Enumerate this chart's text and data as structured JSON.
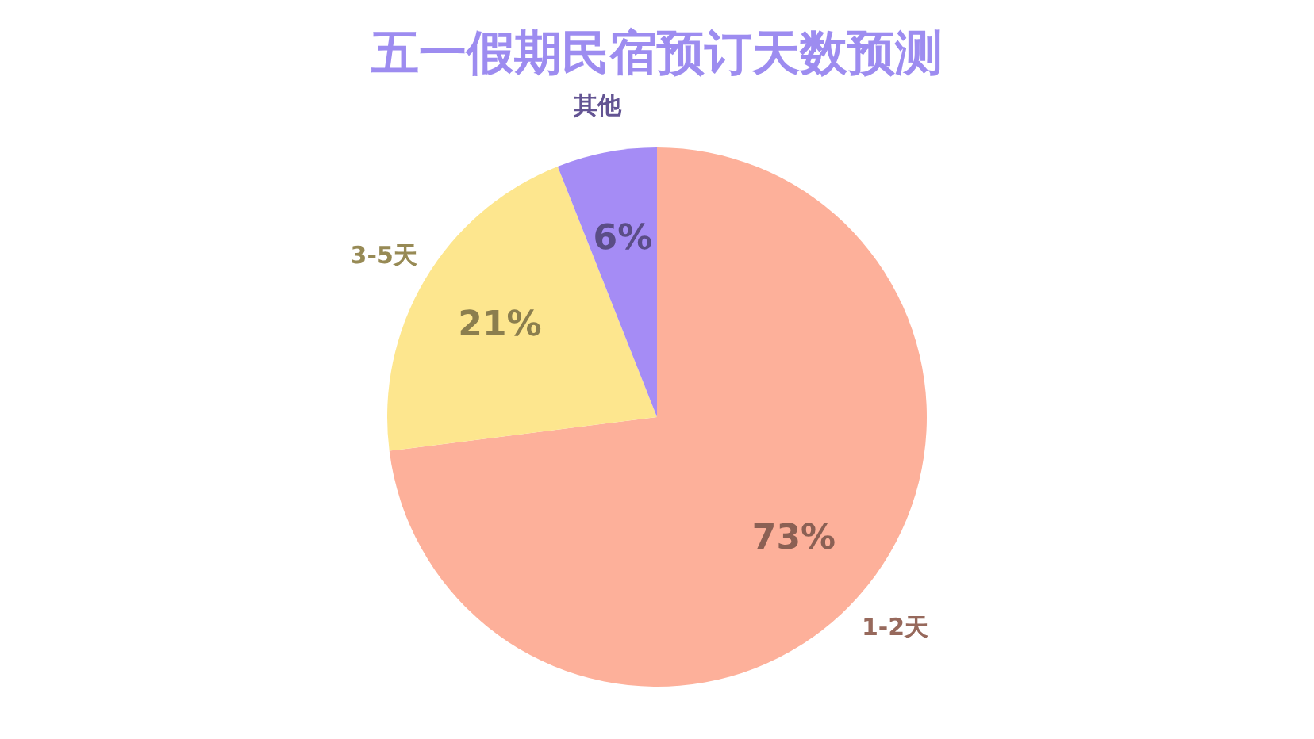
{
  "chart_data": {
    "type": "pie",
    "title": "五一假期民宿预订天数预测",
    "categories": [
      "1-2天",
      "3-5天",
      "其他"
    ],
    "values": [
      73,
      21,
      6
    ],
    "value_labels": [
      "73%",
      "21%",
      "6%"
    ],
    "colors": [
      "#fdb09a",
      "#fde68e",
      "#a58cf5"
    ],
    "legend": false
  }
}
